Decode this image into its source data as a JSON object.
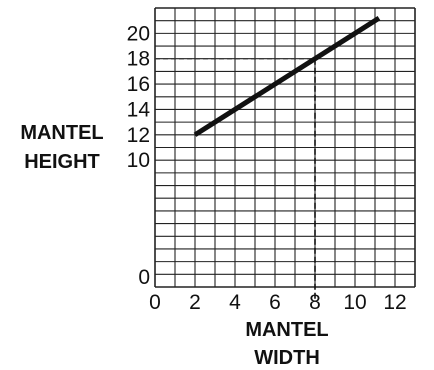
{
  "chart_data": {
    "type": "line",
    "title": "",
    "xlabel_lines": [
      "MANTEL",
      "WIDTH"
    ],
    "ylabel_lines": [
      "MANTEL",
      "HEIGHT"
    ],
    "xlim": [
      0,
      13
    ],
    "ylim": [
      0,
      22
    ],
    "x_ticks": [
      0,
      2,
      4,
      6,
      8,
      10,
      12
    ],
    "y_ticks": [
      0,
      10,
      12,
      14,
      16,
      18,
      20
    ],
    "x_tick_labels": [
      "0",
      "2",
      "4",
      "6",
      "8",
      "10",
      "12"
    ],
    "y_tick_labels": [
      "0",
      "10",
      "12",
      "14",
      "16",
      "18",
      "20"
    ],
    "x_minor_step": 1,
    "y_minor_step": 1,
    "y_axis_break": true,
    "grid": true,
    "series": [
      {
        "x": [
          2,
          11.2
        ],
        "y": [
          12,
          21.2
        ],
        "color": "#111111"
      }
    ],
    "reference_point": {
      "x": 8,
      "y": 18
    }
  }
}
